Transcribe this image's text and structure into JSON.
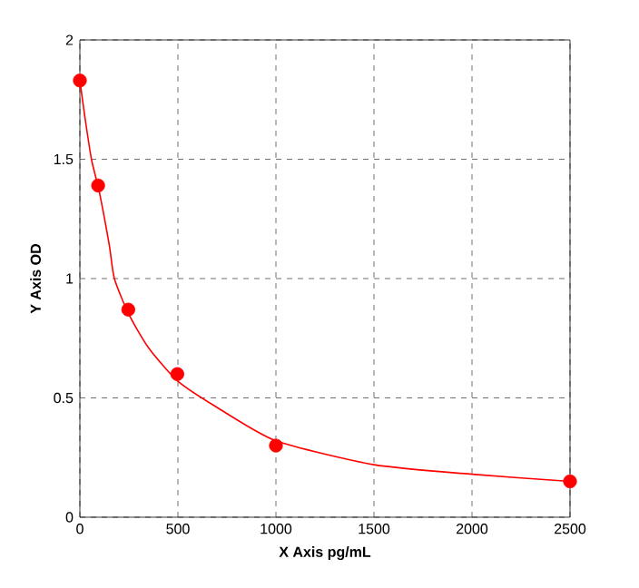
{
  "chart_data": {
    "type": "scatter",
    "xlabel": "X Axis pg/mL",
    "ylabel": "Y Axis OD",
    "xlim": [
      0,
      2500
    ],
    "ylim": [
      0,
      2
    ],
    "xticks": [
      0,
      500,
      1000,
      1500,
      2000,
      2500
    ],
    "yticks": [
      0,
      0.5,
      1,
      1.5,
      2
    ],
    "grid": true,
    "series": [
      {
        "color": "#ff0000",
        "marker": "circle",
        "x": [
          0,
          93,
          247,
          497,
          1000,
          2500
        ],
        "values": [
          1.83,
          1.39,
          0.87,
          0.6,
          0.3,
          0.15
        ]
      },
      {
        "type": "line",
        "color": "#ff0000",
        "marker": "none",
        "x": [
          0,
          25,
          59,
          100,
          150,
          176,
          250,
          350,
          500,
          700,
          1000,
          1500,
          2000,
          2500
        ],
        "values": [
          1.83,
          1.68,
          1.5,
          1.36,
          1.14,
          1.0,
          0.85,
          0.71,
          0.57,
          0.46,
          0.32,
          0.22,
          0.18,
          0.15
        ]
      }
    ]
  }
}
